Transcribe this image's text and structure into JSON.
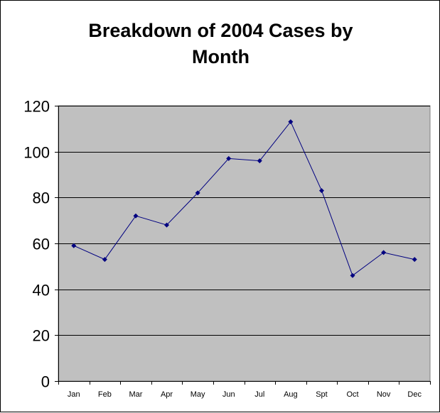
{
  "chart_data": {
    "type": "line",
    "title": "Breakdown of 2004 Cases by Month",
    "xlabel": "",
    "ylabel": "",
    "categories": [
      "Jan",
      "Feb",
      "Mar",
      "Apr",
      "May",
      "Jun",
      "Jul",
      "Aug",
      "Spt",
      "Oct",
      "Nov",
      "Dec"
    ],
    "series": [
      {
        "values": [
          59,
          53,
          72,
          68,
          82,
          97,
          96,
          113,
          83,
          46,
          56,
          53
        ]
      }
    ],
    "ylim": [
      0,
      120
    ],
    "yticks": [
      0,
      20,
      40,
      60,
      80,
      100,
      120
    ],
    "grid": true,
    "legend": "none",
    "colors": {
      "plot_background": "#c0c0c0",
      "line": "#000080",
      "gridline": "#000000"
    }
  }
}
